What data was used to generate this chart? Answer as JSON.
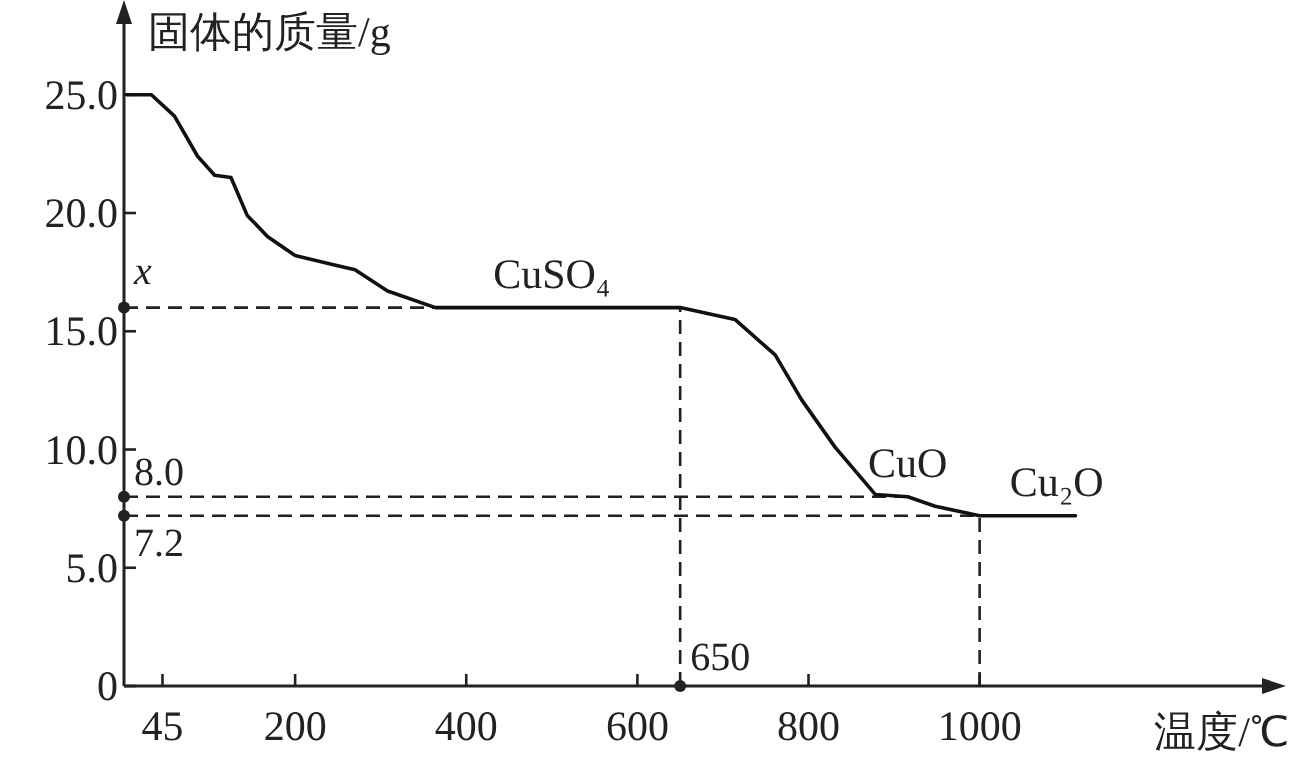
{
  "chart_data": {
    "type": "line",
    "ylabel": "固体的质量/g",
    "xlabel": "温度/℃",
    "series": [
      {
        "color": "#111111",
        "x": [
          3,
          32,
          59,
          86,
          106,
          125,
          144,
          168,
          200,
          246,
          270,
          308,
          364,
          650,
          714,
          761,
          792,
          831,
          878,
          916,
          948,
          1000,
          1112
        ],
        "values": [
          25,
          25,
          24.1,
          22.4,
          21.6,
          21.5,
          19.9,
          19.0,
          18.2,
          17.8,
          17.6,
          16.7,
          16.0,
          16.0,
          15.5,
          14.0,
          12.1,
          10.1,
          8.1,
          8.0,
          7.6,
          7.2,
          7.2
        ]
      }
    ],
    "xlim": [
      0,
      1330
    ],
    "ylim": [
      0,
      28.5
    ],
    "xticks": [
      45,
      200,
      400,
      600,
      800,
      1000
    ],
    "yticks": [
      0,
      {
        "value": 5,
        "label": "5.0"
      },
      {
        "value": 10,
        "label": "10.0"
      },
      {
        "value": 15,
        "label": "15.0"
      },
      {
        "value": 20,
        "label": "20.0"
      },
      {
        "value": 25,
        "label": "25.0"
      }
    ],
    "ref_lines": [
      {
        "axis": "y",
        "value": 16,
        "label": "x",
        "line_style": "dashed"
      },
      {
        "axis": "y",
        "value": 8.0,
        "label": "8.0",
        "line_style": "dashed"
      },
      {
        "axis": "y",
        "value": 7.2,
        "label": "7.2",
        "line_style": "dashed"
      },
      {
        "axis": "x",
        "value": 650,
        "label": "650",
        "line_style": "dashed"
      },
      {
        "axis": "x",
        "value": 1000,
        "label": null,
        "line_style": "dashed"
      }
    ],
    "annotations": [
      {
        "text": "CuSO₄",
        "x": 500,
        "y": 16
      },
      {
        "text": "CuO",
        "x": 916,
        "y": 8.0
      },
      {
        "text": "Cu₂O",
        "x": 1090,
        "y": 7.2
      }
    ],
    "grid": false,
    "marker": "none",
    "line_style": "solid"
  }
}
